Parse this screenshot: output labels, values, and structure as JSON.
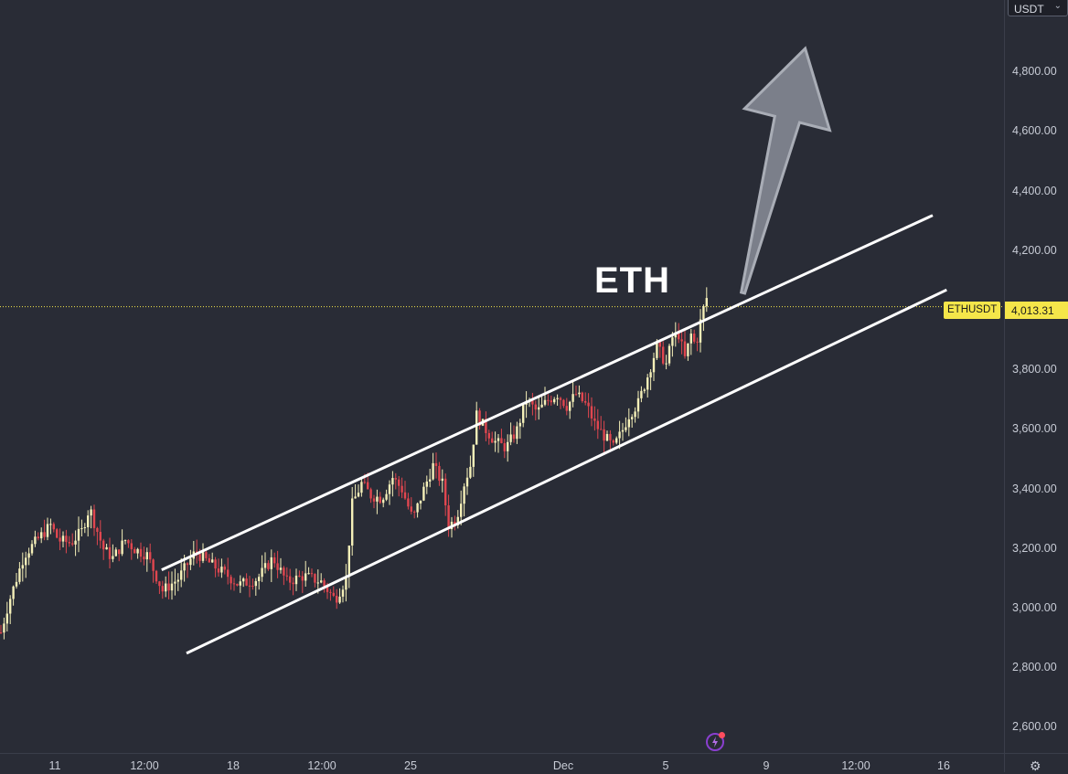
{
  "symbol": "ETHUSDT",
  "currency": "USDT",
  "last_price": "4,013.31",
  "annotation_text": "ETH",
  "colors": {
    "background": "#292c36",
    "up_candle": "#f4efb8",
    "down_candle": "#e0464f",
    "channel_line": "#ffffff",
    "arrow_fill": "#7b7f8a",
    "price_tag": "#f5e64a"
  },
  "icons": {
    "currency_dropdown": "chevron-down-icon",
    "settings": "gear-icon",
    "alert": "lightning-icon"
  },
  "price_axis_labels": [
    "4,800.00",
    "4,600.00",
    "4,400.00",
    "4,200.00",
    "3,800.00",
    "3,600.00",
    "3,400.00",
    "3,200.00",
    "3,000.00",
    "2,800.00",
    "2,600.00"
  ],
  "time_axis_labels": [
    "11",
    "12:00",
    "18",
    "12:00",
    "25",
    "Dec",
    "5",
    "9",
    "12:00",
    "16"
  ],
  "chart_data": {
    "type": "candlestick",
    "title": "",
    "y_range": [
      2560,
      4900
    ],
    "y_scale": "linear",
    "grid": false,
    "price_ticks": [
      2600,
      2800,
      3000,
      3200,
      3400,
      3600,
      3800,
      4000,
      4200,
      4400,
      4600,
      4800
    ],
    "close_trend": [
      [
        0,
        2920
      ],
      [
        5,
        3020
      ],
      [
        15,
        3180
      ],
      [
        25,
        3240
      ],
      [
        32,
        3280
      ],
      [
        37,
        3230
      ],
      [
        45,
        3220
      ],
      [
        52,
        3260
      ],
      [
        57,
        3340
      ],
      [
        60,
        3290
      ],
      [
        66,
        3200
      ],
      [
        72,
        3170
      ],
      [
        80,
        3230
      ],
      [
        86,
        3200
      ],
      [
        94,
        3180
      ],
      [
        104,
        3060
      ],
      [
        114,
        3100
      ],
      [
        125,
        3190
      ],
      [
        135,
        3150
      ],
      [
        146,
        3110
      ],
      [
        153,
        3080
      ],
      [
        165,
        3100
      ],
      [
        175,
        3170
      ],
      [
        184,
        3090
      ],
      [
        195,
        3110
      ],
      [
        206,
        3090
      ],
      [
        215,
        3030
      ],
      [
        222,
        3100
      ],
      [
        226,
        3350
      ],
      [
        232,
        3420
      ],
      [
        238,
        3380
      ],
      [
        245,
        3370
      ],
      [
        252,
        3440
      ],
      [
        258,
        3400
      ],
      [
        265,
        3300
      ],
      [
        272,
        3400
      ],
      [
        278,
        3480
      ],
      [
        284,
        3420
      ],
      [
        288,
        3280
      ],
      [
        293,
        3300
      ],
      [
        298,
        3420
      ],
      [
        302,
        3480
      ],
      [
        306,
        3650
      ],
      [
        312,
        3600
      ],
      [
        318,
        3560
      ],
      [
        325,
        3540
      ],
      [
        332,
        3600
      ],
      [
        338,
        3700
      ],
      [
        345,
        3660
      ],
      [
        352,
        3700
      ],
      [
        358,
        3720
      ],
      [
        364,
        3680
      ],
      [
        370,
        3720
      ],
      [
        377,
        3680
      ],
      [
        382,
        3620
      ],
      [
        388,
        3580
      ],
      [
        394,
        3540
      ],
      [
        400,
        3600
      ],
      [
        404,
        3650
      ],
      [
        410,
        3690
      ],
      [
        416,
        3780
      ],
      [
        422,
        3880
      ],
      [
        428,
        3820
      ],
      [
        432,
        3910
      ],
      [
        436,
        3920
      ],
      [
        440,
        3840
      ],
      [
        444,
        3920
      ],
      [
        447,
        3880
      ],
      [
        451,
        3990
      ],
      [
        455,
        4060
      ]
    ],
    "channel": {
      "upper": [
        [
          104,
          3130
        ],
        [
          600,
          4320
        ]
      ],
      "lower": [
        [
          120,
          2850
        ],
        [
          609,
          4070
        ]
      ]
    },
    "arrow": {
      "from": [
        478,
        4060
      ],
      "to": [
        518,
        4880
      ]
    },
    "x_ticks": [
      {
        "label": "11",
        "x": 36
      },
      {
        "label": "12:00",
        "x": 95
      },
      {
        "label": "18",
        "x": 153
      },
      {
        "label": "12:00",
        "x": 211
      },
      {
        "label": "25",
        "x": 270
      },
      {
        "label": "Dec",
        "x": 370
      },
      {
        "label": "5",
        "x": 436
      },
      {
        "label": "9",
        "x": 504
      },
      {
        "label": "12:00",
        "x": 562
      },
      {
        "label": "16",
        "x": 620
      }
    ],
    "x_range": [
      0,
      660
    ],
    "last_value": 4013.31
  }
}
